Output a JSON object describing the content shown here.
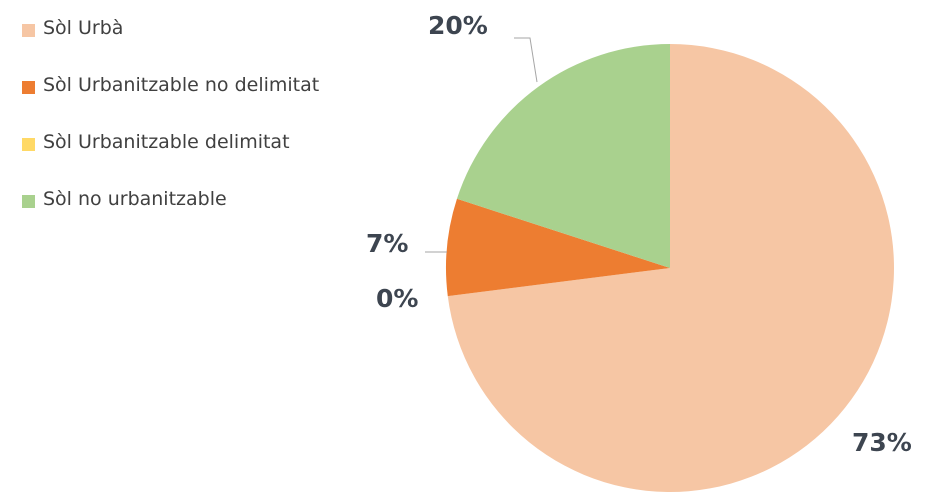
{
  "chart_data": {
    "type": "pie",
    "title": "",
    "legend_position": "top-left",
    "slices": [
      {
        "label": "Sòl Urbà",
        "value": 73,
        "value_label": "73%",
        "color": "#f6c6a4"
      },
      {
        "label": "Sòl Urbanitzable no delimitat",
        "value": 7,
        "value_label": "7%",
        "color": "#ed7d31"
      },
      {
        "label": "Sòl Urbanitzable delimitat",
        "value": 0,
        "value_label": "0%",
        "color": "#ffd966"
      },
      {
        "label": "Sòl no urbanitzable",
        "value": 20,
        "value_label": "20%",
        "color": "#a9d18e"
      }
    ]
  }
}
